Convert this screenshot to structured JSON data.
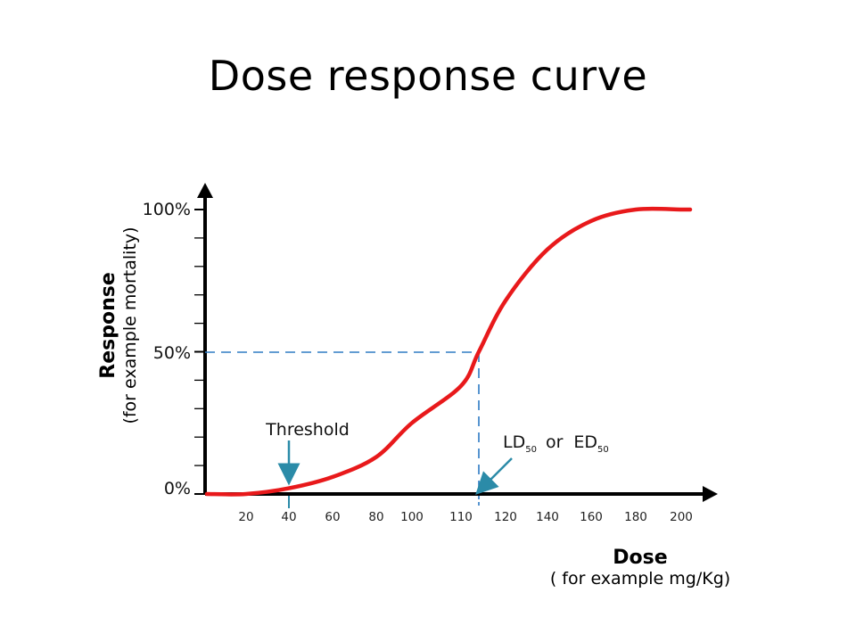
{
  "title": "Dose response curve",
  "colors": {
    "curve": "#e8191b",
    "guide": "#2e7bc4",
    "arrow": "#2b8ba8",
    "axis": "#000000"
  },
  "chart_data": {
    "type": "line",
    "xlabel": "Dose",
    "xlabel_sub": "( for example mg/Kg)",
    "ylabel": "Response",
    "ylabel_sub": "(for example mortality)",
    "x_ticks": [
      "20",
      "40",
      "60",
      "80",
      "100",
      "110",
      "120",
      "140",
      "160",
      "180",
      "200"
    ],
    "y_levels": [
      "0%",
      "50%",
      "100%"
    ],
    "series": [
      {
        "x": [
          0,
          20,
          40,
          60,
          80,
          100,
          110,
          114,
          120,
          140,
          160,
          180,
          200
        ],
        "y": [
          0,
          0,
          2,
          6,
          13,
          25,
          38,
          50,
          68,
          86,
          96,
          100,
          100
        ]
      }
    ],
    "annotations": {
      "threshold_label": "Threshold",
      "threshold_dose": 40,
      "ld_label_prefix": "LD",
      "ld_sub": "50",
      "ld_or": "or",
      "ed_label_prefix": "ED",
      "ed_sub": "50",
      "ld50_dose": 114
    }
  }
}
